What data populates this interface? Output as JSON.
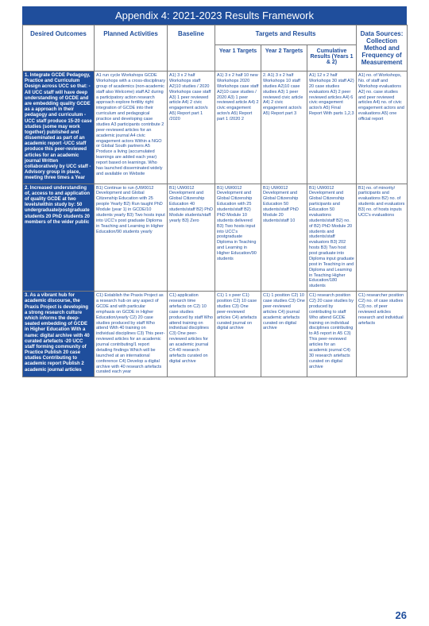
{
  "title": "Appendix 4: 2021-2023 Results Framework",
  "page_number": "26",
  "colors": {
    "brand_blue": "#1f4e9c",
    "white": "#ffffff",
    "border": "#7a7a7a"
  },
  "headers": {
    "desired_outcomes": "Desired Outcomes",
    "planned_activities": "Planned Activities",
    "baseline": "Baseline",
    "targets_results": "Targets and Results",
    "year1_targets": "Year 1 Targets",
    "year2_targets": "Year 2 Targets",
    "cumulative_results": "Cumulative Results (Years 1 & 2)",
    "data_sources": "Data Sources: Collection Method and Frequency of Measurement"
  },
  "rows": [
    {
      "outcome": "1. Integrate GCDE Pedagogy, Practice and Curriculum Design across UCC so that: -All UCC staff will have deep understanding of GCDE and are embedding quality GCDE as a approach in their pedagogy and curriculum -UCC staff produce 15-20 case studies (some may work together) published and disseminated as part of an academic report -UCC staff produce this peer-reviewed articles for an academic journal Written collaboratively by UCC staff -Advisory group in place, meeting three times a Year",
      "activities": "A1 run cycle Workshops GCDE Workshops with a cross-disciplinary group of academics (non-academic staff also Welcome) staff A2 during a participatory action research approach explore fertility right integration of GCDE into their curriculum and pedagogical practice and developing case studies A3 participants contribute 2 peer-reviewed articles for an academic journal A4 civic engagement actors Within a NGO or Global South partners A5 Produce a living (accumulated learnings are added each year) report based on learnings. Who has launched disseminated widely and available on Website",
      "baseline": "A1) 3 x 2 half Workshops staff A2)10 studies / 2020 Workshops case staff A3) 1 peer reviewed article A4) 2 civic engagement actor/s A5) Report part 1 /2020",
      "year1": "A1) 3 x 2 half 10 new Workshops 2020 Workshops case staff A2)10 case studies / 2020 A3) 1 peer reviewed article A4) 2 civic engagement actor/s A5) Report part 1 /2020 2",
      "year2": "2. A1) 3 x 2 half Workshops 10 staff studies A2)10 case studies A3) 1 peer reviewed civic article A4) 2 civic engagement actor/s A5) Report part 3",
      "cumulative": "A1) 12 x 2 half Workshops 30 staff A2) 20 case studies evaluators A3) 2 peer reviewed articles A4) 6 civic engagement actor/s A5) Final Report With parts 1,2,3",
      "sources": "A1) no. of Workshops, No. of staff and Workshop evaluations A2) no. case studies and peer reviewed articles A4) no. of civic engagement actors and evaluations A5) one official report"
    },
    {
      "outcome": "2. Increased understanding of, access to and application of quality GCDE at two levels/within study by: 50 undergraduate/postgraduate students 20 PhD students 20 members of the wider public",
      "activities": "B1) Continue to run (UW0012 Development and Global Citizenship Education with 25 people Yearly B2) Run taught PhD Module (year 1) in GCDE/10 students yearly B3) Two hosts input into UCC's post graduate Diploma in Teaching and Learning in Higher Education/90 students yearly",
      "baseline": "B1) UW0012 Development and Global Citizenship Education 40 students/staff B2) PhD Module students/staff yearly B3) Zero",
      "year1": "B1) UW0012 Development and Global Citizenship Education with 25 students/staff B2) PhD Module 10 students delivered B3) Two hosts input into UCC's postgraduate Diploma in Teaching and Learning in Higher Education/90 students",
      "year2": "B1) UW0012 Development and Global Citizenship Education 50 students/staff PhD Module 20 students/staff 10",
      "cumulative": "B1) UW0012 Development and Global Citizenship participants and Education 50 evaluations students/staff B2) no. of B2) PhD Module 20 students and students/staff evaluators B3) 202 hosts B3) Two host post graduate into Diploma input graduate post in Teaching in and Diploma and Learning in Teaching Higher Education/180 students",
      "sources": "B1) no. of minority/ participants and evaluations B2) no. of students and evaluators B3) no. of hosts inputs UCC's evaluations"
    },
    {
      "outcome": "3. As a vibrant hub for academic discourse, the Praxis Project is developing a strong research culture which informs the deep-seated embedding of GCDE in Higher Education With a name: digital archive with 40 curated artefacts -20 UCC staff forming community of Practice Publish 20 case studies Contributing to academic report Publish 2 academic journal articles",
      "activities": "C1) Establish the Praxis Project as a research hub on any aspect of GCDE and with particular emphasis on GCDE in Higher Education/yearly C2) 20 case studies produced by staff Who attend With 40 training on individual disciplines C3) This peer-reviewed articles for an academic journal contributing/1 report detailing findings Which will be launched at an international conference C4) Develop a digital archive with 40 research artefacts curated each year",
      "baseline": "C1) application research time artefacts on C2) 10 case studies produced by staff Who attend training on individual disciplines C3) One peer-reviewed articles for an academic journal C4-40 research artefacts curated on digital archive",
      "year1": "C1) 1 x peer C1) position C2) 10 case studies C3) One peer-reviewed articles C4) artefacts curated journal on digital archive",
      "year2": "C1) 1 position C2) 10 case studies C3) One peer-reviewed articles C4) journal academic artefacts curated on digital archive",
      "cumulative": "C1) research position C2) 20 case studies by produced by contributing to staff Who attend GCDE training on individual disciplines contributing to A5 report in A5 C3) This peer-reviewed articles for an academic journal C4) 30 research artefacts curated on digital archive",
      "sources": "C1) researcher position C2) no. of case studies C3) no. of peer reviewed articles research and individual artefacts"
    }
  ]
}
